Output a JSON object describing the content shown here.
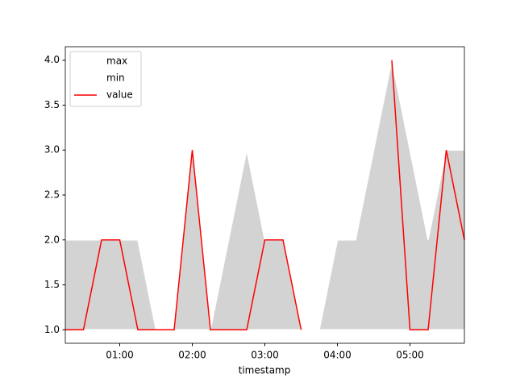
{
  "chart_data": {
    "type": "line",
    "x": [
      "00:15",
      "00:30",
      "00:45",
      "01:00",
      "01:15",
      "01:30",
      "01:45",
      "02:00",
      "02:15",
      "02:30",
      "02:45",
      "03:00",
      "03:15",
      "03:30",
      "03:45",
      "04:00",
      "04:15",
      "04:30",
      "04:45",
      "05:00",
      "05:15",
      "05:30",
      "05:45"
    ],
    "series": [
      {
        "name": "max",
        "color": "#ffffff",
        "values": [
          2,
          2,
          2,
          2,
          2,
          1,
          1,
          3,
          1,
          2,
          3,
          2,
          2,
          1,
          1,
          2,
          2,
          3,
          4,
          3,
          2,
          3,
          3
        ]
      },
      {
        "name": "min",
        "color": "#ffffff",
        "values": [
          1,
          1,
          1,
          1,
          1,
          1,
          1,
          1,
          1,
          1,
          1,
          1,
          1,
          1,
          1,
          1,
          1,
          1,
          1,
          1,
          1,
          1,
          1
        ]
      },
      {
        "name": "value",
        "color": "#ff0000",
        "values": [
          1,
          1,
          2,
          2,
          1,
          1,
          1,
          3,
          1,
          1,
          1,
          2,
          2,
          1,
          null,
          null,
          null,
          null,
          4,
          1,
          1,
          3,
          2
        ]
      }
    ],
    "fill_color": "#d3d3d3",
    "xlabel": "timestamp",
    "xlim": [
      "00:15",
      "05:45"
    ],
    "xticks": [
      "01:00",
      "02:00",
      "03:00",
      "04:00",
      "05:00"
    ],
    "ylim": [
      0.85,
      4.15
    ],
    "yticks": [
      {
        "value": 1,
        "label": "1.0"
      },
      1.5,
      {
        "value": 2,
        "label": "2.0"
      },
      2.5,
      {
        "value": 3,
        "label": "3.0"
      },
      3.5,
      {
        "value": 4,
        "label": "4.0"
      }
    ],
    "legend": "upper left"
  }
}
